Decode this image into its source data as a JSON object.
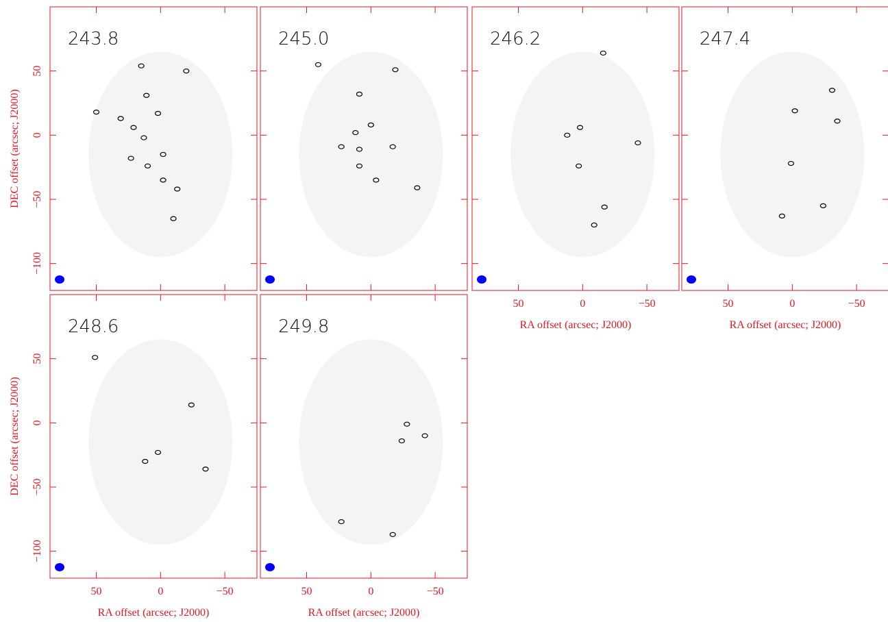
{
  "chart_data": [
    {
      "type": "contour",
      "label": "243.8",
      "color": "#000000",
      "beam_color": "#0000ff",
      "x": [
        11,
        13,
        -2,
        15,
        50,
        31,
        21,
        2,
        10,
        23,
        -13,
        -20,
        -10,
        -2
      ],
      "y": [
        31,
        -2,
        -35,
        54,
        18,
        13,
        6,
        17,
        -24,
        -18,
        -42,
        50,
        -65,
        -15
      ],
      "xlim": [
        86,
        -75
      ],
      "ylim": [
        -121,
        100
      ],
      "xticks": [
        50,
        0,
        -50
      ],
      "yticks": [
        {
          "value": 50,
          "label": "50"
        },
        {
          "value": 0,
          "label": "0"
        },
        {
          "value": -50,
          "label": "−50"
        },
        {
          "value": -100,
          "label": "−100"
        }
      ],
      "ylabel": "DEC offset (arcsec; J2000)"
    },
    {
      "type": "contour",
      "label": "245.0",
      "color": "#000000",
      "beam_color": "#0000ff",
      "x": [
        12,
        9,
        41,
        -19,
        -4,
        23,
        9,
        9,
        -17,
        0,
        -36
      ],
      "y": [
        2,
        32,
        55,
        51,
        -35,
        -9,
        -11,
        -24,
        -9,
        8,
        -41
      ],
      "xlim": [
        86,
        -75
      ],
      "ylim": [
        -121,
        100
      ],
      "xticks": [
        50,
        0,
        -50
      ],
      "yticks": [
        50,
        0,
        -50,
        -100
      ]
    },
    {
      "type": "contour",
      "label": "246.2",
      "color": "#000000",
      "beam_color": "#0000ff",
      "x": [
        12,
        -16,
        3,
        -43,
        -17,
        -9,
        2
      ],
      "y": [
        0,
        64,
        -24,
        -6,
        -56,
        -70,
        6
      ],
      "xlim": [
        86,
        -75
      ],
      "ylim": [
        -121,
        100
      ],
      "xticks": [
        {
          "value": 50,
          "label": "50"
        },
        {
          "value": 0,
          "label": "0"
        },
        {
          "value": -50,
          "label": "−50"
        }
      ],
      "yticks": [
        50,
        0,
        -50,
        -100
      ],
      "xlabel": "RA offset (arcsec; J2000)"
    },
    {
      "type": "contour",
      "label": "247.4",
      "color": "#000000",
      "beam_color": "#0000ff",
      "x": [
        -31,
        -2,
        -35,
        1,
        8,
        -24
      ],
      "y": [
        35,
        19,
        11,
        -22,
        -63,
        -55
      ],
      "xlim": [
        86,
        -75
      ],
      "ylim": [
        -121,
        100
      ],
      "xticks": [
        {
          "value": 50,
          "label": "50"
        },
        {
          "value": 0,
          "label": "0"
        },
        {
          "value": -50,
          "label": "−50"
        }
      ],
      "yticks": [
        50,
        0,
        -50,
        -100
      ],
      "xlabel": "RA offset (arcsec; J2000)"
    },
    {
      "type": "contour",
      "label": "248.6",
      "color": "#000000",
      "beam_color": "#0000ff",
      "x": [
        51,
        -24,
        2,
        12,
        -35
      ],
      "y": [
        51,
        14,
        -23,
        -30,
        -36
      ],
      "xlim": [
        86,
        -75
      ],
      "ylim": [
        -121,
        100
      ],
      "xticks": [
        {
          "value": 50,
          "label": "50"
        },
        {
          "value": 0,
          "label": "0"
        },
        {
          "value": -50,
          "label": "−50"
        }
      ],
      "yticks": [
        {
          "value": 50,
          "label": "50"
        },
        {
          "value": 0,
          "label": "0"
        },
        {
          "value": -50,
          "label": "−50"
        },
        {
          "value": -100,
          "label": "−100"
        }
      ],
      "xlabel": "RA offset (arcsec; J2000)",
      "ylabel": "DEC offset (arcsec; J2000)"
    },
    {
      "type": "contour",
      "label": "249.8",
      "color": "#000000",
      "beam_color": "#0000ff",
      "x": [
        -28,
        -24,
        -42,
        23,
        -17
      ],
      "y": [
        -1,
        -14,
        -10,
        -77,
        -87
      ],
      "xlim": [
        86,
        -75
      ],
      "ylim": [
        -121,
        100
      ],
      "xticks": [
        {
          "value": 50,
          "label": "50"
        },
        {
          "value": 0,
          "label": "0"
        },
        {
          "value": -50,
          "label": "−50"
        }
      ],
      "yticks": [
        50,
        0,
        -50,
        -100
      ],
      "xlabel": "RA offset (arcsec; J2000)"
    }
  ]
}
